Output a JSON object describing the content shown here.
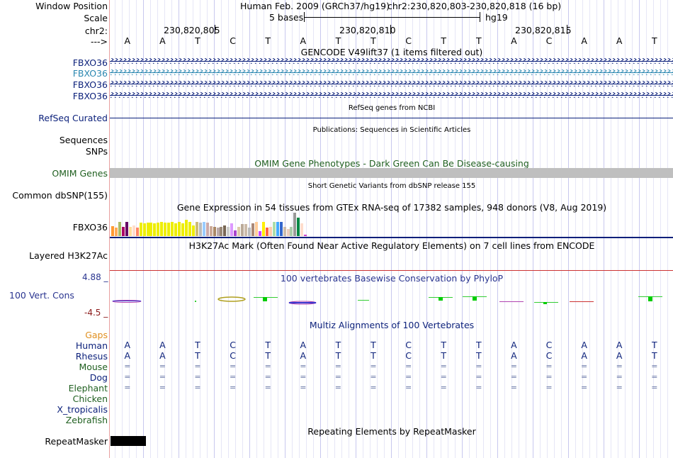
{
  "header": {
    "window_position_label": "Window Position",
    "assembly": "Human Feb. 2009 (GRCh37/hg19)",
    "position": "chr2:230,820,803-230,820,818 (16 bp)",
    "scale_label": "Scale",
    "scale_text": "5 bases",
    "scale_db": "hg19",
    "chrom_label": "chr2:",
    "coords": [
      "230,820,805",
      "230,820,810",
      "230,820,815"
    ],
    "strand_label": "--->",
    "bases": [
      "A",
      "A",
      "T",
      "C",
      "T",
      "A",
      "T",
      "T",
      "C",
      "T",
      "T",
      "A",
      "C",
      "A",
      "A",
      "T"
    ]
  },
  "gencode": {
    "title": "GENCODE V49lift37 (1 items filtered out)",
    "genes": [
      "FBXO36",
      "FBXO36",
      "FBXO36",
      "FBXO36"
    ]
  },
  "refseq": {
    "title": "RefSeq genes from NCBI",
    "label": "RefSeq Curated"
  },
  "publications": {
    "title": "Publications: Sequences in Scientific Articles",
    "labels": [
      "Sequences",
      "SNPs"
    ]
  },
  "omim": {
    "title": "OMIM Gene Phenotypes - Dark Green Can Be Disease-causing",
    "label": "OMIM Genes"
  },
  "dbsnp": {
    "title": "Short Genetic Variants from dbSNP release 155",
    "label": "Common dbSNP(155)"
  },
  "gtex": {
    "title": "Gene Expression in 54 tissues from GTEx RNA-seq of 17382 samples, 948 donors (V8, Aug 2019)",
    "label": "FBXO36",
    "bars": [
      {
        "v": 0.42,
        "c": "#ff9933"
      },
      {
        "v": 0.35,
        "c": "#ffaa55"
      },
      {
        "v": 0.62,
        "c": "#aabb66"
      },
      {
        "v": 0.4,
        "c": "#aa0066"
      },
      {
        "v": 0.6,
        "c": "#660066"
      },
      {
        "v": 0.38,
        "c": "#ffdd99"
      },
      {
        "v": 0.45,
        "c": "#ffddcc"
      },
      {
        "v": 0.35,
        "c": "#ff8866"
      },
      {
        "v": 0.58,
        "c": "#eeee00"
      },
      {
        "v": 0.56,
        "c": "#eeee00"
      },
      {
        "v": 0.58,
        "c": "#eeee00"
      },
      {
        "v": 0.57,
        "c": "#eeee00"
      },
      {
        "v": 0.55,
        "c": "#eeee00"
      },
      {
        "v": 0.58,
        "c": "#eeee00"
      },
      {
        "v": 0.6,
        "c": "#eeee00"
      },
      {
        "v": 0.57,
        "c": "#eeee00"
      },
      {
        "v": 0.58,
        "c": "#eeee00"
      },
      {
        "v": 0.6,
        "c": "#eeee00"
      },
      {
        "v": 0.56,
        "c": "#eeee00"
      },
      {
        "v": 0.6,
        "c": "#eeee00"
      },
      {
        "v": 0.55,
        "c": "#eeee00"
      },
      {
        "v": 0.7,
        "c": "#eeee00"
      },
      {
        "v": 0.62,
        "c": "#eeee00"
      },
      {
        "v": 0.45,
        "c": "#eeee00"
      },
      {
        "v": 0.6,
        "c": "#ccbb77"
      },
      {
        "v": 0.58,
        "c": "#bbbbbb"
      },
      {
        "v": 0.6,
        "c": "#99ccff"
      },
      {
        "v": 0.58,
        "c": "#ccaaaa"
      },
      {
        "v": 0.42,
        "c": "#ccaa99"
      },
      {
        "v": 0.38,
        "c": "#aa8866"
      },
      {
        "v": 0.35,
        "c": "#bbaaaa"
      },
      {
        "v": 0.4,
        "c": "#998877"
      },
      {
        "v": 0.45,
        "c": "#776655"
      },
      {
        "v": 0.38,
        "c": "#cccccc"
      },
      {
        "v": 0.55,
        "c": "#dd99ff"
      },
      {
        "v": 0.25,
        "c": "#aa44cc"
      },
      {
        "v": 0.38,
        "c": "#ddccaa"
      },
      {
        "v": 0.5,
        "c": "#bbaa99"
      },
      {
        "v": 0.52,
        "c": "#ccbbaa"
      },
      {
        "v": 0.35,
        "c": "#bbbbbb"
      },
      {
        "v": 0.55,
        "c": "#aa8877"
      },
      {
        "v": 0.6,
        "c": "#ffcc99"
      },
      {
        "v": 0.22,
        "c": "#cc44ff"
      },
      {
        "v": 0.6,
        "c": "#ffee00"
      },
      {
        "v": 0.35,
        "c": "#ff6644"
      },
      {
        "v": 0.38,
        "c": "#ffccaa"
      },
      {
        "v": 0.62,
        "c": "#aaddaa"
      },
      {
        "v": 0.62,
        "c": "#44aaff"
      },
      {
        "v": 0.6,
        "c": "#3366cc"
      },
      {
        "v": 0.38,
        "c": "#ccbbaa"
      },
      {
        "v": 0.3,
        "c": "#eeccbb"
      },
      {
        "v": 0.4,
        "c": "#aaccaa"
      },
      {
        "v": 1.0,
        "c": "#999999"
      },
      {
        "v": 0.8,
        "c": "#008844"
      },
      {
        "v": 0.55,
        "c": "#ffddcc"
      },
      {
        "v": 0.05,
        "c": "#cc44cc"
      }
    ]
  },
  "h3k27ac": {
    "title": "H3K27Ac Mark (Often Found Near Active Regulatory Elements) on 7 cell lines from ENCODE",
    "label": "Layered H3K27Ac"
  },
  "cons": {
    "title": "100 vertebrates Basewise Conservation by PhyloP",
    "label": "100 Vert. Cons",
    "ymax": "4.88 _",
    "ymin": "-4.5 _"
  },
  "multiz": {
    "title": "Multiz Alignments of 100 Vertebrates",
    "gaps_label": "Gaps",
    "species": [
      {
        "name": "Human",
        "color": "#0a1f7a"
      },
      {
        "name": "Rhesus",
        "color": "#0a1f7a"
      },
      {
        "name": "Mouse",
        "color": "#1f5f1f"
      },
      {
        "name": "Dog",
        "color": "#0a1f7a"
      },
      {
        "name": "Elephant",
        "color": "#1f5f1f"
      },
      {
        "name": "Chicken",
        "color": "#1f5f1f"
      },
      {
        "name": "X_tropicalis",
        "color": "#0a1f7a"
      },
      {
        "name": "Zebrafish",
        "color": "#1f5f1f"
      }
    ],
    "human_seq": [
      "A",
      "A",
      "T",
      "C",
      "T",
      "A",
      "T",
      "T",
      "C",
      "T",
      "T",
      "A",
      "C",
      "A",
      "A",
      "T"
    ],
    "rhesus_seq": [
      "A",
      "A",
      "T",
      "C",
      "T",
      "A",
      "T",
      "T",
      "C",
      "T",
      "T",
      "A",
      "C",
      "A",
      "A",
      "T"
    ],
    "eq": "="
  },
  "repeatmasker": {
    "title": "Repeating Elements by RepeatMasker",
    "label": "RepeatMasker"
  }
}
